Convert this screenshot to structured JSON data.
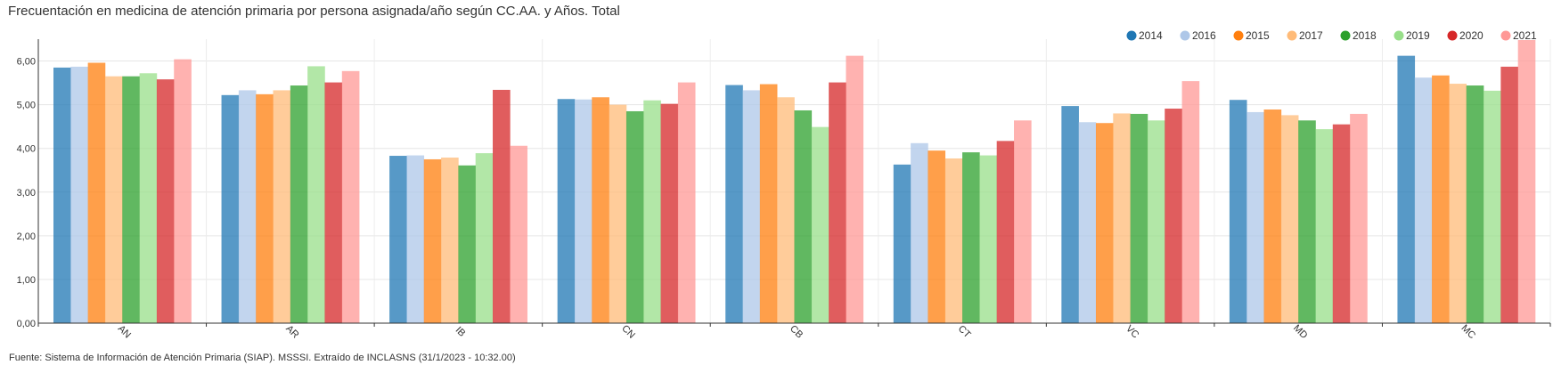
{
  "title": "Frecuentación en medicina de atención primaria por persona asignada/año según CC.AA. y Años. Total",
  "source": "Fuente: Sistema de Información de Atención Primaria (SIAP). MSSSI. Extraído de INCLASNS (31/1/2023 - 10:32.00)",
  "chart_data": {
    "type": "bar",
    "title": "Frecuentación en medicina de atención primaria por persona asignada/año según CC.AA. y Años. Total",
    "xlabel": "",
    "ylabel": "",
    "ylim": [
      0,
      6.5
    ],
    "yticks": [
      0,
      1,
      2,
      3,
      4,
      5,
      6
    ],
    "ytick_labels": [
      "0,00",
      "1,00",
      "2,00",
      "3,00",
      "4,00",
      "5,00",
      "6,00"
    ],
    "grid": true,
    "legend_position": "top-right",
    "categories": [
      "AN",
      "AR",
      "IB",
      "CN",
      "CB",
      "CT",
      "VC",
      "MD",
      "MC"
    ],
    "series": [
      {
        "name": "2014",
        "color": "#1f77b4",
        "values": [
          5.85,
          5.22,
          3.83,
          5.13,
          5.45,
          3.63,
          4.97,
          5.11,
          6.12
        ]
      },
      {
        "name": "2016",
        "color": "#aec7e8",
        "values": [
          5.87,
          5.33,
          3.84,
          5.12,
          5.33,
          4.12,
          4.6,
          4.83,
          5.62
        ]
      },
      {
        "name": "2015",
        "color": "#ff7f0e",
        "values": [
          5.96,
          5.24,
          3.75,
          5.17,
          5.47,
          3.95,
          4.58,
          4.89,
          5.67
        ]
      },
      {
        "name": "2017",
        "color": "#ffbb78",
        "values": [
          5.65,
          5.33,
          3.79,
          5.0,
          5.17,
          3.77,
          4.8,
          4.76,
          5.48
        ]
      },
      {
        "name": "2018",
        "color": "#2ca02c",
        "values": [
          5.65,
          5.44,
          3.61,
          4.85,
          4.87,
          3.91,
          4.79,
          4.64,
          5.44
        ]
      },
      {
        "name": "2019",
        "color": "#98df8a",
        "values": [
          5.72,
          5.88,
          3.89,
          5.1,
          4.49,
          3.84,
          4.64,
          4.44,
          5.32
        ]
      },
      {
        "name": "2020",
        "color": "#d62728",
        "values": [
          5.58,
          5.51,
          5.34,
          5.02,
          5.51,
          4.17,
          4.91,
          4.55,
          5.87
        ]
      },
      {
        "name": "2021",
        "color": "#ff9896",
        "values": [
          6.04,
          5.77,
          4.06,
          5.51,
          6.12,
          4.64,
          5.54,
          4.79,
          6.48
        ]
      }
    ]
  }
}
